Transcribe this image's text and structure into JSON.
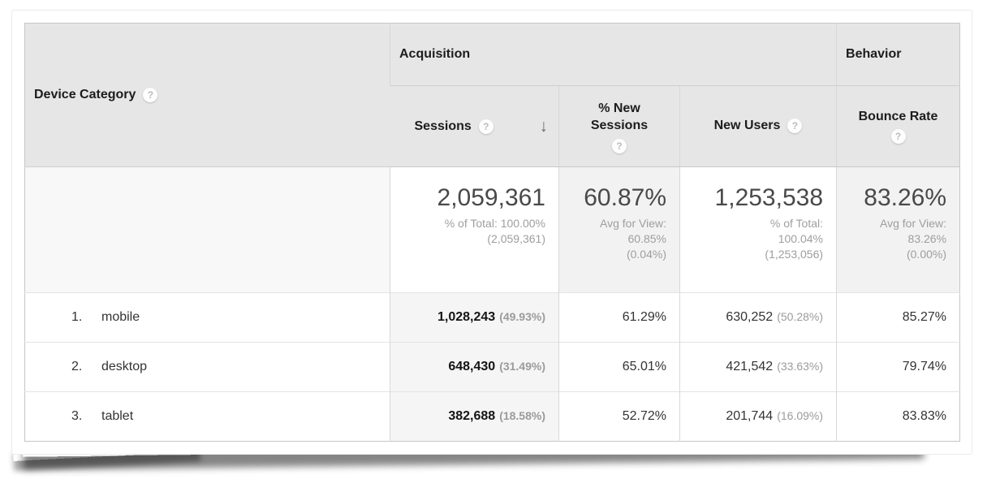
{
  "icons": {
    "help": "?",
    "sort_desc": "↓"
  },
  "colors": {
    "header_bg": "#e6e6e6",
    "sorted_column_bg": "#f5f5f5",
    "summary_shaded_bg": "#f2f2f2",
    "muted_text": "#9e9e9e"
  },
  "table": {
    "dimension_header": {
      "label": "Device Category"
    },
    "column_groups": [
      {
        "label": "Acquisition"
      },
      {
        "label": "Behavior"
      }
    ],
    "columns": [
      {
        "label": "Sessions",
        "sorted": "desc"
      },
      {
        "label": "% New Sessions"
      },
      {
        "label": "New Users"
      },
      {
        "label": "Bounce Rate"
      }
    ],
    "summary": {
      "sessions": {
        "value": "2,059,361",
        "sub": [
          "% of Total: 100.00%",
          "(2,059,361)"
        ]
      },
      "new_sessions": {
        "value": "60.87%",
        "sub": [
          "Avg for View:",
          "60.85%",
          "(0.04%)"
        ]
      },
      "new_users": {
        "value": "1,253,538",
        "sub": [
          "% of Total:",
          "100.04%",
          "(1,253,056)"
        ]
      },
      "bounce_rate": {
        "value": "83.26%",
        "sub": [
          "Avg for View:",
          "83.26%",
          "(0.00%)"
        ]
      }
    },
    "rows": [
      {
        "rank": "1.",
        "device": "mobile",
        "sessions": "1,028,243",
        "sessions_pct": "(49.93%)",
        "new_sessions": "61.29%",
        "new_users": "630,252",
        "new_users_pct": "(50.28%)",
        "bounce_rate": "85.27%"
      },
      {
        "rank": "2.",
        "device": "desktop",
        "sessions": "648,430",
        "sessions_pct": "(31.49%)",
        "new_sessions": "65.01%",
        "new_users": "421,542",
        "new_users_pct": "(33.63%)",
        "bounce_rate": "79.74%"
      },
      {
        "rank": "3.",
        "device": "tablet",
        "sessions": "382,688",
        "sessions_pct": "(18.58%)",
        "new_sessions": "52.72%",
        "new_users": "201,744",
        "new_users_pct": "(16.09%)",
        "bounce_rate": "83.83%"
      }
    ]
  }
}
